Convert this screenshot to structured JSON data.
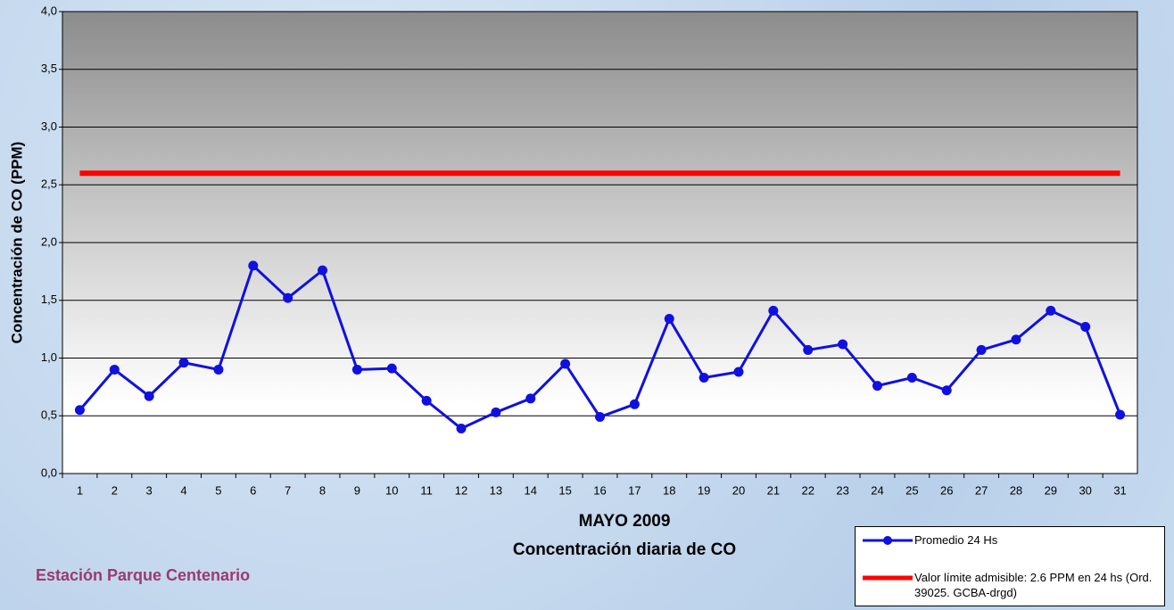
{
  "chart_data": {
    "type": "line",
    "title": "MAYO 2009",
    "subtitle": "Concentración diaria de CO",
    "y_label": "Concentración de CO (PPM)",
    "annotation": "Estación Parque Centenario",
    "categories": [
      "1",
      "2",
      "3",
      "4",
      "5",
      "6",
      "7",
      "8",
      "9",
      "10",
      "11",
      "12",
      "13",
      "14",
      "15",
      "16",
      "17",
      "18",
      "19",
      "20",
      "21",
      "22",
      "23",
      "24",
      "25",
      "26",
      "27",
      "28",
      "29",
      "30",
      "31"
    ],
    "series": [
      {
        "name": "Promedio 24 Hs",
        "color": "#1010e0",
        "values": [
          0.55,
          0.9,
          0.67,
          0.96,
          0.9,
          1.8,
          1.52,
          1.76,
          0.9,
          0.91,
          0.63,
          0.39,
          0.53,
          0.65,
          0.95,
          0.49,
          0.6,
          1.34,
          0.83,
          0.88,
          1.41,
          1.07,
          1.12,
          0.76,
          0.83,
          0.72,
          1.07,
          1.16,
          1.41,
          1.27,
          0.51
        ]
      },
      {
        "name": "Valor límite admisible: 2.6 PPM en 24 hs (Ord. 39025. GCBA-drgd)",
        "color": "#ff0000",
        "values": [
          2.6,
          2.6,
          2.6,
          2.6,
          2.6,
          2.6,
          2.6,
          2.6,
          2.6,
          2.6,
          2.6,
          2.6,
          2.6,
          2.6,
          2.6,
          2.6,
          2.6,
          2.6,
          2.6,
          2.6,
          2.6,
          2.6,
          2.6,
          2.6,
          2.6,
          2.6,
          2.6,
          2.6,
          2.6,
          2.6,
          2.6
        ]
      }
    ],
    "ylim": [
      0,
      4
    ],
    "yticks": [
      {
        "value": 0,
        "label": "0,0"
      },
      {
        "value": 0.5,
        "label": "0,5"
      },
      {
        "value": 1,
        "label": "1,0"
      },
      {
        "value": 1.5,
        "label": "1,5"
      },
      {
        "value": 2,
        "label": "2,0"
      },
      {
        "value": 2.5,
        "label": "2,5"
      },
      {
        "value": 3,
        "label": "3,0"
      },
      {
        "value": 3.5,
        "label": "3,5"
      },
      {
        "value": 4,
        "label": "4,0"
      }
    ],
    "grid": true
  }
}
